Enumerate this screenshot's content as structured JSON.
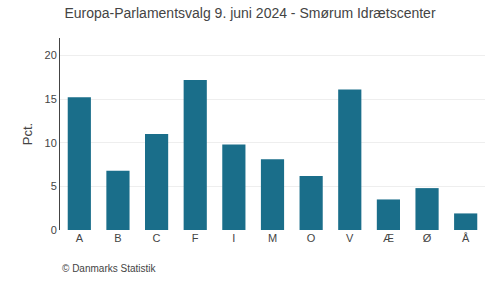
{
  "chart_data": {
    "type": "bar",
    "title": "Europa-Parlamentsvalg 9. juni 2024 - Smørum Idrætscenter",
    "categories": [
      "A",
      "B",
      "C",
      "F",
      "I",
      "M",
      "O",
      "V",
      "Æ",
      "Ø",
      "Å"
    ],
    "values": [
      15.2,
      6.8,
      11.0,
      17.2,
      9.8,
      8.1,
      6.2,
      16.1,
      3.5,
      4.8,
      1.9
    ],
    "color": "#1a6e8a",
    "ylabel": "Pct.",
    "annotations": [
      "© Danmarks Statistik"
    ],
    "ylim": [
      0,
      22
    ],
    "yticks": [
      0,
      5,
      10,
      15,
      20
    ],
    "grid": true
  }
}
